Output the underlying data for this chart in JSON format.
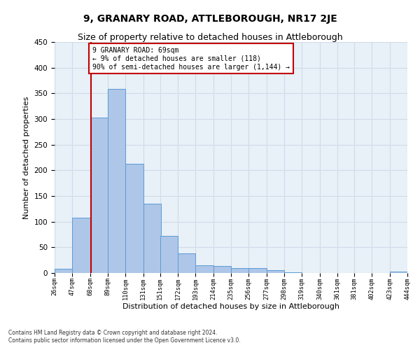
{
  "title": "9, GRANARY ROAD, ATTLEBOROUGH, NR17 2JE",
  "subtitle": "Size of property relative to detached houses in Attleborough",
  "xlabel": "Distribution of detached houses by size in Attleborough",
  "ylabel": "Number of detached properties",
  "footnote1": "Contains HM Land Registry data © Crown copyright and database right 2024.",
  "footnote2": "Contains public sector information licensed under the Open Government Licence v3.0.",
  "bin_edges": [
    26,
    47,
    68,
    89,
    110,
    131,
    151,
    172,
    193,
    214,
    235,
    256,
    277,
    298,
    319,
    340,
    361,
    381,
    402,
    423,
    444
  ],
  "bar_heights": [
    8,
    108,
    303,
    358,
    213,
    135,
    72,
    38,
    15,
    14,
    10,
    10,
    5,
    1,
    0,
    0,
    0,
    0,
    0,
    3
  ],
  "bar_color": "#aec6e8",
  "bar_edge_color": "#5b9bd5",
  "property_size": 69,
  "property_line_color": "#c00000",
  "annotation_text": "9 GRANARY ROAD: 69sqm\n← 9% of detached houses are smaller (118)\n90% of semi-detached houses are larger (1,144) →",
  "annotation_box_color": "#ffffff",
  "annotation_border_color": "#c00000",
  "ylim": [
    0,
    450
  ],
  "yticks": [
    0,
    50,
    100,
    150,
    200,
    250,
    300,
    350,
    400,
    450
  ],
  "tick_labels": [
    "26sqm",
    "47sqm",
    "68sqm",
    "89sqm",
    "110sqm",
    "131sqm",
    "151sqm",
    "172sqm",
    "193sqm",
    "214sqm",
    "235sqm",
    "256sqm",
    "277sqm",
    "298sqm",
    "319sqm",
    "340sqm",
    "361sqm",
    "381sqm",
    "402sqm",
    "423sqm",
    "444sqm"
  ],
  "grid_color": "#d0dce8",
  "background_color": "#e8f0f8",
  "title_fontsize": 10,
  "subtitle_fontsize": 9,
  "ylabel_fontsize": 8,
  "xlabel_fontsize": 8
}
